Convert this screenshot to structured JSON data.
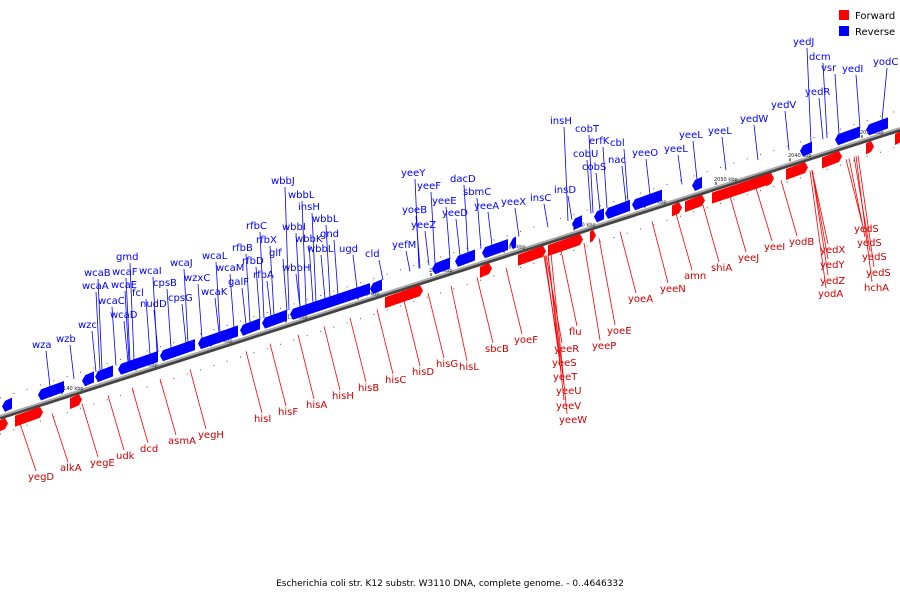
{
  "caption": "Escherichia coli str. K12 substr. W3110 DNA, complete genome. - 0..4646332",
  "legend": {
    "forward": {
      "label": "Forward",
      "color": "#ff0000"
    },
    "reverse": {
      "label": "Reverse",
      "color": "#0000ff"
    }
  },
  "backbone_color": "#888888",
  "ticks": [
    "2140 kbp",
    "2130 kbp",
    "2120 kbp",
    "2110 kbp",
    "2100 kbp",
    "2090 kbp",
    "2080 kbp",
    "2070 kbp",
    "2060 kbp",
    "2050 kbp",
    "2040 kbp",
    "2030 kbp"
  ],
  "reverse_genes": [
    "wza",
    "wzb",
    "wzc",
    "wcaD",
    "wcaC",
    "wcaA",
    "wcaB",
    "wcaE",
    "wcaF",
    "gmd",
    "fcl",
    "nudD",
    "cpsB",
    "wcaI",
    "cpsG",
    "wcaJ",
    "wzxC",
    "wcaK",
    "wcaM",
    "wcaL",
    "galF",
    "rfbA",
    "rfbD",
    "rfbB",
    "rfbX",
    "rfbC",
    "glf",
    "wbbH",
    "wbbI",
    "wbbJ",
    "wbbK",
    "wbbL",
    "insH",
    "wbbL",
    "gnd",
    "wbbL",
    "ugd",
    "cld",
    "yefM",
    "yoeB",
    "yeeZ",
    "yeeF",
    "yeeY",
    "yeeE",
    "yeeD",
    "sbmC",
    "dacD",
    "yeeA",
    "yeeX",
    "insC",
    "insD",
    "cobS",
    "cobU",
    "cobT",
    "erfK",
    "insH",
    "cbl",
    "nac",
    "yeeO",
    "yeeL",
    "yeeL",
    "yeeL",
    "yedW",
    "yedV",
    "yedR",
    "dcm",
    "yedJ",
    "vsr",
    "yedI",
    "yodC"
  ],
  "forward_genes": [
    "yegD",
    "alkA",
    "yegE",
    "udk",
    "dcd",
    "asmA",
    "yegH",
    "hisI",
    "hisF",
    "hisA",
    "hisH",
    "hisB",
    "hisC",
    "hisD",
    "hisG",
    "hisL",
    "sbcB",
    "yoeF",
    "yeeR",
    "yeeS",
    "yeeT",
    "yeeU",
    "yeeV",
    "yeeW",
    "flu",
    "yeeP",
    "yoeE",
    "yoeA",
    "yeeN",
    "amn",
    "shiA",
    "yeeJ",
    "yeeI",
    "yodB",
    "yedX",
    "yedY",
    "yedZ",
    "yodA",
    "yedS",
    "yedS",
    "yedS",
    "yedS",
    "hchA"
  ]
}
